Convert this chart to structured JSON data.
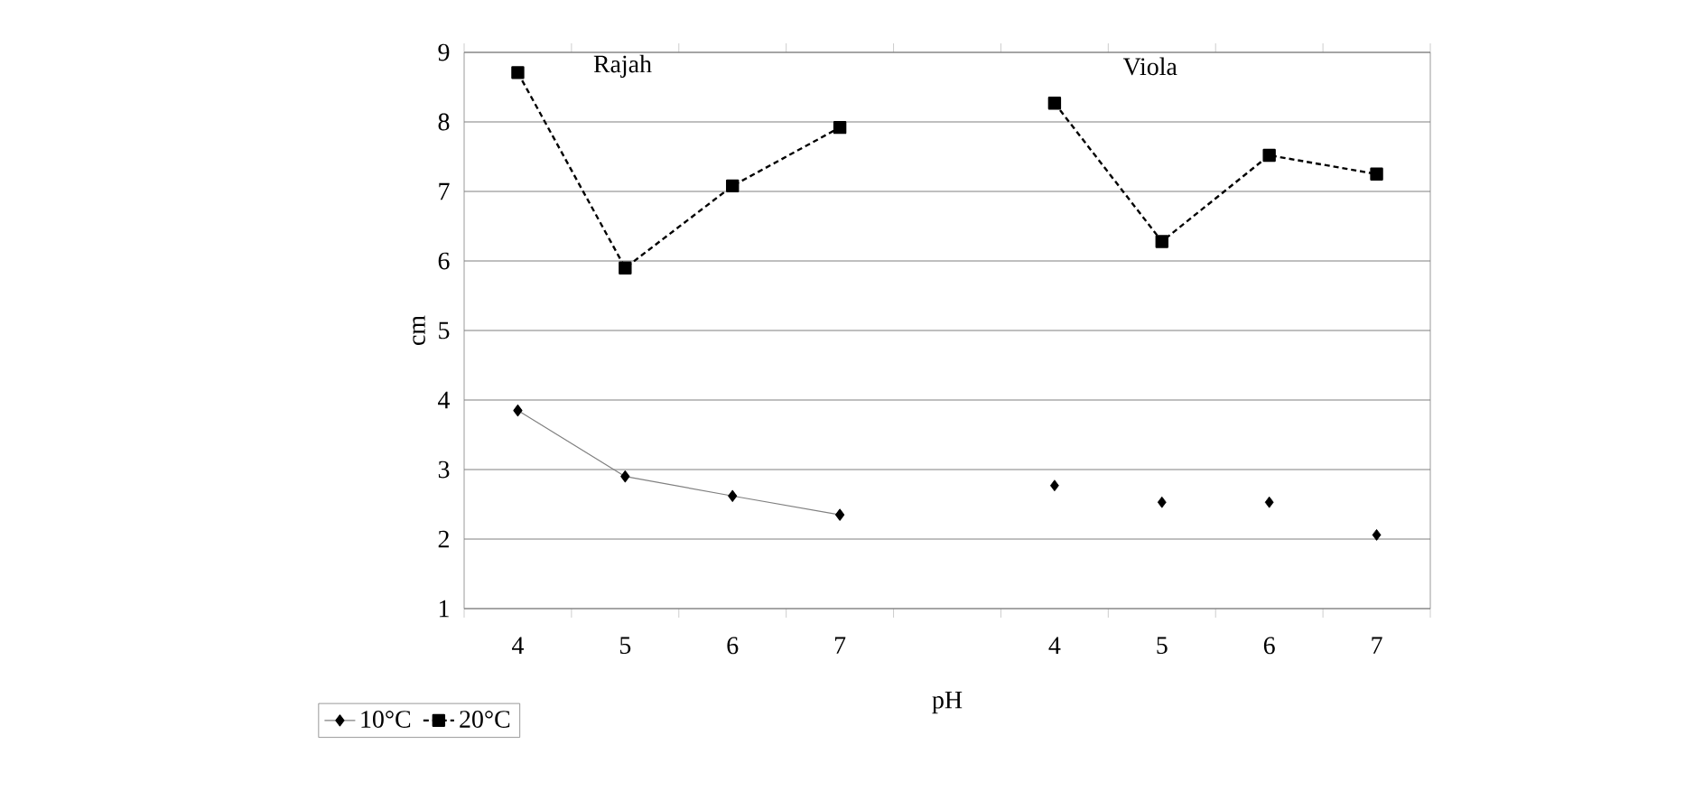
{
  "chart_data": {
    "type": "line",
    "xlabel": "pH",
    "ylabel": "cm",
    "categories": [
      "4",
      "5",
      "6",
      "7",
      null,
      "4",
      "5",
      "6",
      "7"
    ],
    "series": [
      {
        "name": "10°C",
        "color": "#000000",
        "marker": "diamond",
        "line_style": "solid",
        "values": [
          3.85,
          2.9,
          2.62,
          2.35,
          null,
          null,
          null,
          null,
          null
        ]
      },
      {
        "name": "20°C",
        "color": "#000000",
        "marker": "square",
        "line_style": "dashed",
        "values": [
          8.71,
          5.9,
          7.08,
          7.92,
          null,
          8.27,
          6.28,
          7.52,
          7.25
        ]
      },
      {
        "type": "scatter",
        "color": "#000000",
        "marker": "diamond",
        "values": [
          null,
          null,
          null,
          null,
          null,
          2.77,
          2.53,
          2.53,
          2.06
        ]
      }
    ],
    "annotations": [
      "Rajah",
      "Viola"
    ],
    "ylim": [
      1,
      9
    ],
    "yticks": [
      1,
      2,
      3,
      4,
      5,
      6,
      7,
      8,
      9
    ],
    "grid": "y",
    "legend": "bottom left"
  }
}
